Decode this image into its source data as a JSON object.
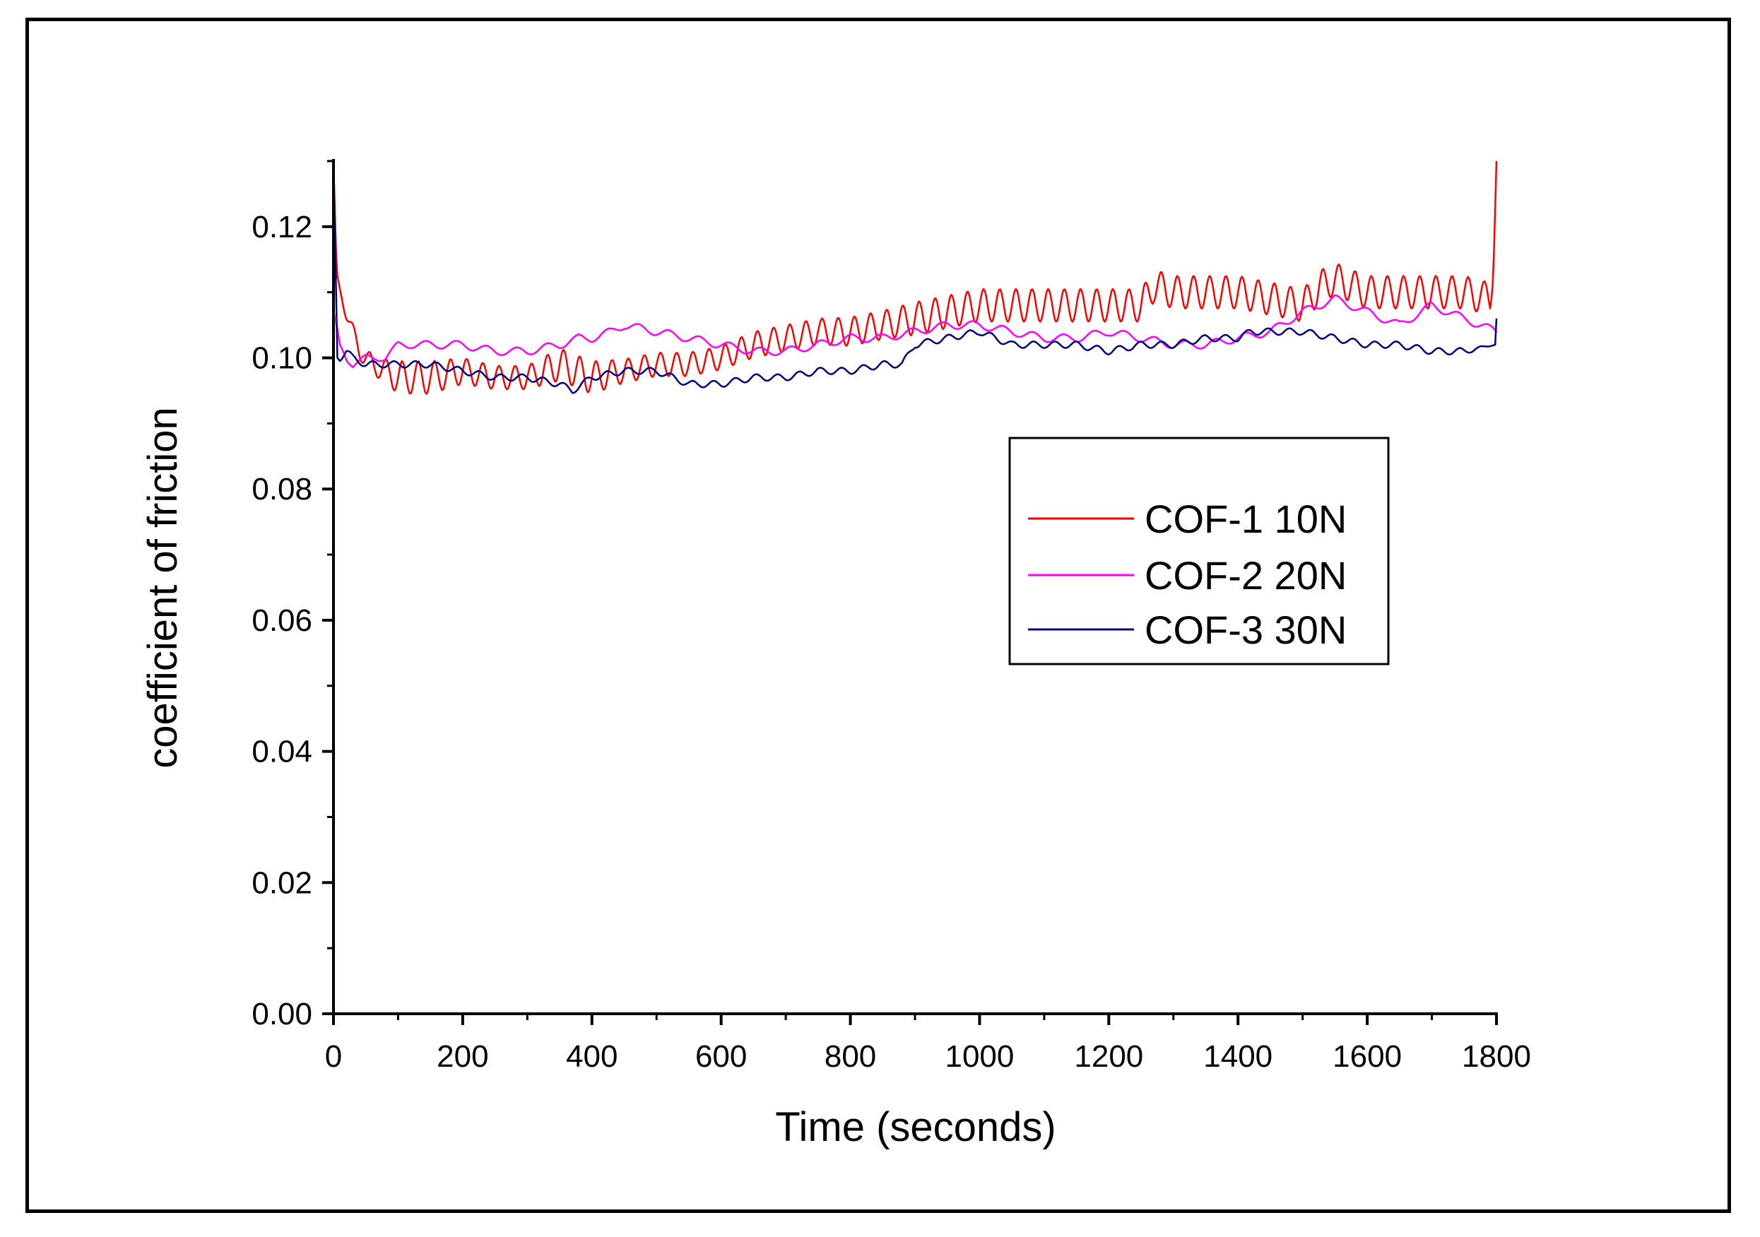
{
  "chart_data": {
    "type": "line",
    "title": "",
    "xlabel": "Time (seconds)",
    "ylabel": "coefficient of friction",
    "xlim": [
      0,
      1800
    ],
    "ylim": [
      0,
      0.13
    ],
    "x_ticks": [
      "0",
      "200",
      "400",
      "600",
      "800",
      "1000",
      "1200",
      "1400",
      "1600",
      "1800"
    ],
    "y_ticks": [
      "0.00",
      "0.02",
      "0.04",
      "0.06",
      "0.08",
      "0.10",
      "0.12"
    ],
    "legend_position": "center-right",
    "series": [
      {
        "name": "COF-1 10N",
        "color": "#ff0000",
        "x": [
          0,
          5,
          10,
          20,
          30,
          40,
          50,
          60,
          80,
          100,
          150,
          200,
          250,
          300,
          350,
          400,
          450,
          500,
          550,
          600,
          650,
          700,
          750,
          800,
          850,
          900,
          950,
          1000,
          1050,
          1100,
          1150,
          1200,
          1250,
          1270,
          1300,
          1350,
          1400,
          1450,
          1500,
          1530,
          1550,
          1600,
          1650,
          1700,
          1750,
          1790,
          1795,
          1800
        ],
        "values": [
          0.13,
          0.112,
          0.11,
          0.107,
          0.104,
          0.101,
          0.1,
          0.099,
          0.098,
          0.097,
          0.097,
          0.098,
          0.097,
          0.097,
          0.099,
          0.097,
          0.098,
          0.099,
          0.099,
          0.1,
          0.102,
          0.103,
          0.104,
          0.104,
          0.105,
          0.106,
          0.107,
          0.108,
          0.108,
          0.108,
          0.108,
          0.108,
          0.108,
          0.111,
          0.11,
          0.11,
          0.11,
          0.109,
          0.108,
          0.111,
          0.112,
          0.11,
          0.11,
          0.11,
          0.11,
          0.109,
          0.112,
          0.13
        ],
        "amplitude": [
          0,
          0.0008,
          0.0008,
          0.0012,
          0.0012,
          0.0012,
          0.0015,
          0.0015,
          0.0018,
          0.0025,
          0.0025,
          0.002,
          0.0018,
          0.0018,
          0.0025,
          0.0025,
          0.0018,
          0.0018,
          0.0018,
          0.0018,
          0.002,
          0.002,
          0.002,
          0.0022,
          0.0022,
          0.0025,
          0.0025,
          0.0025,
          0.0025,
          0.0025,
          0.0025,
          0.0025,
          0.0025,
          0.0025,
          0.0025,
          0.0025,
          0.0025,
          0.0025,
          0.0025,
          0.0025,
          0.0025,
          0.0025,
          0.0025,
          0.0025,
          0.0025,
          0.0025,
          0,
          0
        ]
      },
      {
        "name": "COF-2 20N",
        "color": "#ff00ff",
        "x": [
          0,
          5,
          10,
          20,
          30,
          50,
          80,
          100,
          150,
          200,
          250,
          300,
          350,
          380,
          400,
          430,
          450,
          500,
          550,
          600,
          650,
          700,
          750,
          800,
          850,
          900,
          950,
          1000,
          1050,
          1100,
          1150,
          1200,
          1250,
          1300,
          1350,
          1400,
          1450,
          1500,
          1550,
          1600,
          1650,
          1700,
          1750,
          1800
        ],
        "values": [
          0.107,
          0.105,
          0.102,
          0.1,
          0.099,
          0.1,
          0.1,
          0.102,
          0.102,
          0.102,
          0.101,
          0.101,
          0.102,
          0.103,
          0.103,
          0.104,
          0.105,
          0.104,
          0.103,
          0.102,
          0.101,
          0.101,
          0.102,
          0.103,
          0.103,
          0.104,
          0.105,
          0.105,
          0.104,
          0.103,
          0.103,
          0.104,
          0.103,
          0.102,
          0.102,
          0.103,
          0.104,
          0.107,
          0.109,
          0.107,
          0.105,
          0.108,
          0.106,
          0.104
        ],
        "amplitude": [
          0,
          0,
          0,
          0.0005,
          0.0005,
          0.0005,
          0.0005,
          0.0005,
          0.0006,
          0.0006,
          0.0006,
          0.0006,
          0.0006,
          0.0006,
          0.0006,
          0.0006,
          0.0006,
          0.0006,
          0.0006,
          0.0006,
          0.0006,
          0.0006,
          0.0006,
          0.0006,
          0.0006,
          0.0006,
          0.0006,
          0.0006,
          0.0006,
          0.0006,
          0.0006,
          0.0006,
          0.0006,
          0.0006,
          0.0006,
          0.0006,
          0.0006,
          0.0006,
          0.0006,
          0.0006,
          0.0006,
          0.0006,
          0.0006,
          0.0006
        ]
      },
      {
        "name": "COF-3 30N",
        "color": "#000080",
        "x": [
          0,
          3,
          6,
          10,
          20,
          30,
          50,
          100,
          150,
          200,
          250,
          300,
          350,
          370,
          400,
          450,
          500,
          550,
          600,
          650,
          700,
          750,
          800,
          850,
          880,
          900,
          950,
          1000,
          1050,
          1100,
          1150,
          1200,
          1250,
          1300,
          1350,
          1400,
          1420,
          1450,
          1500,
          1550,
          1600,
          1650,
          1700,
          1750,
          1798,
          1800
        ],
        "values": [
          0.13,
          0.115,
          0.1,
          0.1,
          0.101,
          0.1,
          0.099,
          0.099,
          0.099,
          0.098,
          0.097,
          0.097,
          0.096,
          0.095,
          0.097,
          0.098,
          0.098,
          0.096,
          0.096,
          0.097,
          0.097,
          0.098,
          0.098,
          0.099,
          0.099,
          0.102,
          0.103,
          0.104,
          0.102,
          0.102,
          0.102,
          0.101,
          0.102,
          0.102,
          0.103,
          0.103,
          0.104,
          0.104,
          0.104,
          0.103,
          0.102,
          0.102,
          0.101,
          0.101,
          0.102,
          0.106
        ],
        "amplitude": [
          0,
          0,
          0,
          0.0005,
          0.0005,
          0.0005,
          0.0005,
          0.0005,
          0.0005,
          0.0005,
          0.0005,
          0.0005,
          0.0005,
          0.0005,
          0.0005,
          0.0005,
          0.0005,
          0.0005,
          0.0005,
          0.0005,
          0.0005,
          0.0005,
          0.0005,
          0.0005,
          0.0005,
          0.0005,
          0.0005,
          0.0005,
          0.0005,
          0.0005,
          0.0005,
          0.0005,
          0.0005,
          0.0005,
          0.0005,
          0.0005,
          0.0005,
          0.0005,
          0.0005,
          0.0005,
          0.0005,
          0.0005,
          0.0005,
          0.0005,
          0,
          0
        ]
      }
    ]
  }
}
